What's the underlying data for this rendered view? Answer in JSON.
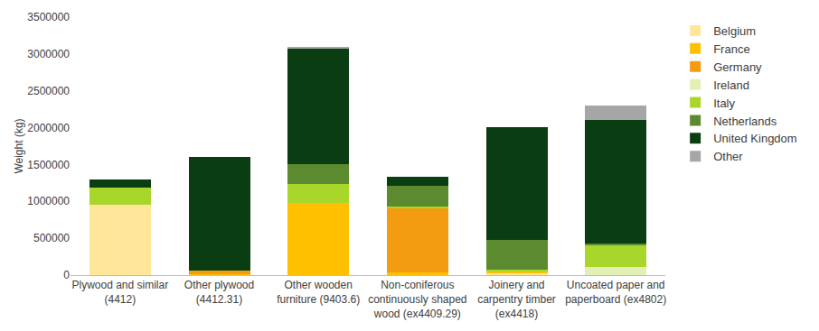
{
  "chart_data": {
    "type": "bar",
    "stacked": true,
    "grid": false,
    "legend": "right",
    "ylabel": "Weight (kg)",
    "categories": [
      "Plywood and similar (4412)",
      "Other plywood (4412.31)",
      "Other wooden furniture (9403.6)",
      "Non-coniferous continuously shaped wood (ex4409.29)",
      "Joinery and carpentry timber (ex4418)",
      "Uncoated paper and paperboard (ex4802)"
    ],
    "ylim": [
      0,
      3500000
    ],
    "yticks": [
      0,
      500000,
      1000000,
      1500000,
      2000000,
      2500000,
      3000000,
      3500000
    ],
    "series": [
      {
        "name": "Belgium",
        "color": "#FFE699",
        "values": [
          950000,
          0,
          0,
          0,
          20000,
          0
        ]
      },
      {
        "name": "France",
        "color": "#FFC000",
        "values": [
          0,
          10000,
          980000,
          40000,
          30000,
          0
        ]
      },
      {
        "name": "Germany",
        "color": "#F39C12",
        "values": [
          0,
          50000,
          0,
          870000,
          0,
          0
        ]
      },
      {
        "name": "Ireland",
        "color": "#E2F0B6",
        "values": [
          0,
          0,
          0,
          0,
          0,
          110000
        ]
      },
      {
        "name": "Italy",
        "color": "#A9D62B",
        "values": [
          240000,
          0,
          260000,
          25000,
          20000,
          300000
        ]
      },
      {
        "name": "Netherlands",
        "color": "#5C8A2E",
        "values": [
          0,
          0,
          260000,
          275000,
          410000,
          20000
        ]
      },
      {
        "name": "United Kingdom",
        "color": "#0B3D12",
        "values": [
          110000,
          1540000,
          1570000,
          130000,
          1530000,
          1670000
        ]
      },
      {
        "name": "Other",
        "color": "#A6A6A6",
        "values": [
          0,
          0,
          30000,
          0,
          0,
          200000
        ]
      }
    ]
  }
}
